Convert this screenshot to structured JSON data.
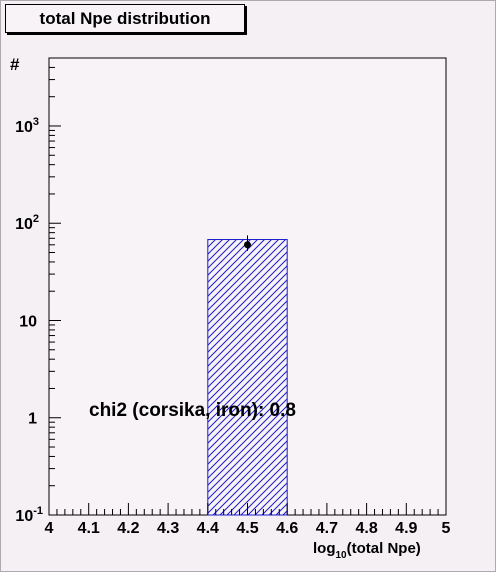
{
  "title": "total Npe distribution",
  "chart_data": {
    "type": "bar",
    "title": "total Npe distribution",
    "xlabel_base": "log",
    "xlabel_sub": "10",
    "xlabel_rest": "(total Npe)",
    "ylabel": "#",
    "xlim": [
      4,
      5
    ],
    "ylim": [
      0.1,
      5000
    ],
    "yscale": "log",
    "x_ticks": [
      "4",
      "4.1",
      "4.2",
      "4.3",
      "4.4",
      "4.5",
      "4.6",
      "4.7",
      "4.8",
      "4.9",
      "5"
    ],
    "y_ticks": [
      {
        "value": 0.1,
        "base": "10",
        "exp": "-1"
      },
      {
        "value": 1,
        "base": "1",
        "exp": ""
      },
      {
        "value": 10,
        "base": "10",
        "exp": ""
      },
      {
        "value": 100,
        "base": "10",
        "exp": "2"
      },
      {
        "value": 1000,
        "base": "10",
        "exp": "3"
      }
    ],
    "series": [
      {
        "style": "hatched histogram",
        "color": "#1c1ccc",
        "bins": [
          {
            "x0": 4.4,
            "x1": 4.6,
            "value": 68
          }
        ]
      },
      {
        "style": "points with error bars",
        "color": "#000000",
        "points": [
          {
            "x": 4.5,
            "y": 60,
            "err_low": 52,
            "err_high": 75
          }
        ]
      }
    ],
    "annotation": "chi2 (corsika, iron): 0.8",
    "grid": false
  }
}
